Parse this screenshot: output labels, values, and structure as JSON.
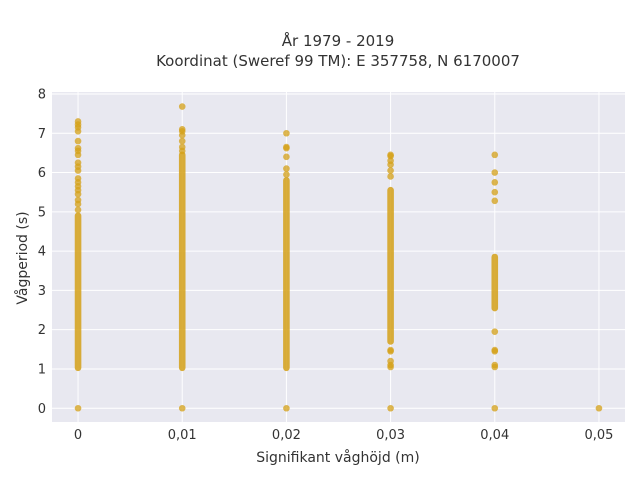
{
  "chart_data": {
    "type": "scatter",
    "title": "År 1979 - 2019",
    "subtitle": "Koordinat (Sweref 99 TM): E 357758, N 6170007",
    "xlabel": "Signifikant våghöjd (m)",
    "ylabel": "Vågperiod (s)",
    "xlim": [
      -0.0025,
      0.0525
    ],
    "ylim": [
      -0.35,
      8.05
    ],
    "grid": true,
    "legend": "none",
    "x_ticks": [
      0,
      0.01,
      0.02,
      0.03,
      0.04,
      0.05
    ],
    "x_tick_labels": [
      "0",
      "0,01",
      "0,02",
      "0,03",
      "0,04",
      "0,05"
    ],
    "y_ticks": [
      0,
      1,
      2,
      3,
      4,
      5,
      6,
      7,
      8
    ],
    "y_tick_labels": [
      "0",
      "1",
      "2",
      "3",
      "4",
      "5",
      "6",
      "7",
      "8"
    ],
    "colors": {
      "plot_background": "#e8e8f0",
      "grid": "#ffffff",
      "marker": "#d4a017"
    },
    "series": [
      {
        "x": 0,
        "ranges": [
          [
            1.03,
            4.9
          ]
        ],
        "points": [
          0,
          5.05,
          5.2,
          5.3,
          5.45,
          5.55,
          5.65,
          5.75,
          5.85,
          6.05,
          6.15,
          6.25,
          6.45,
          6.55,
          6.62,
          6.8,
          7.05,
          7.15,
          7.22,
          7.3
        ]
      },
      {
        "x": 0.01,
        "ranges": [
          [
            1.03,
            6.45
          ]
        ],
        "points": [
          0,
          6.55,
          6.65,
          6.8,
          6.95,
          7.05,
          7.1,
          7.68
        ]
      },
      {
        "x": 0.02,
        "ranges": [
          [
            1.03,
            5.8
          ]
        ],
        "points": [
          0,
          5.95,
          6.1,
          6.4,
          6.62,
          6.65,
          7.0
        ]
      },
      {
        "x": 0.03,
        "ranges": [
          [
            1.7,
            5.55
          ]
        ],
        "points": [
          0,
          1.05,
          1.1,
          1.2,
          1.45,
          1.48,
          5.9,
          6.05,
          6.2,
          6.3,
          6.42,
          6.45
        ]
      },
      {
        "x": 0.04,
        "ranges": [
          [
            2.55,
            3.85
          ]
        ],
        "points": [
          0,
          1.05,
          1.1,
          1.45,
          1.48,
          1.95,
          5.28,
          5.5,
          5.75,
          6.0,
          6.45
        ]
      },
      {
        "x": 0.05,
        "ranges": [],
        "points": [
          0
        ]
      }
    ]
  }
}
